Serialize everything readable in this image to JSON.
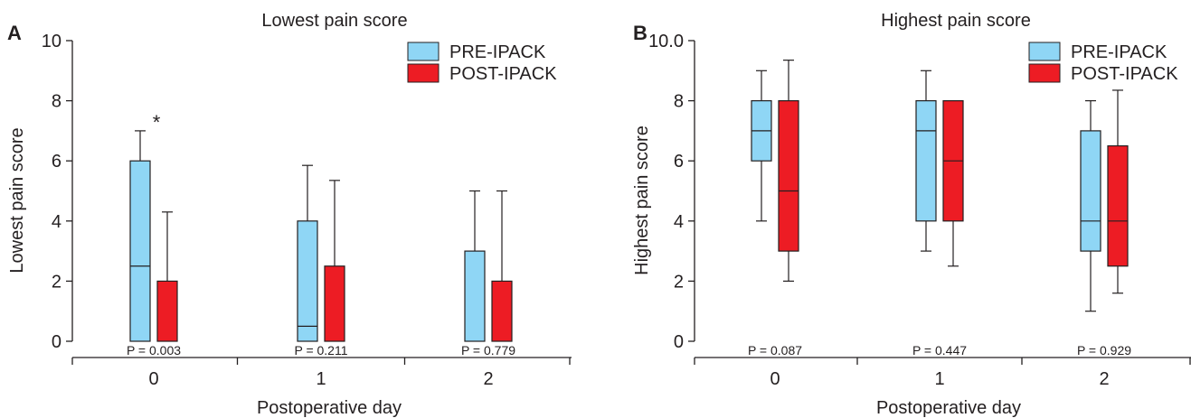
{
  "colors": {
    "pre": "#8fd6f5",
    "post": "#ed1c24",
    "ink": "#231f20"
  },
  "chart_data": [
    {
      "type": "box",
      "panel_label": "A",
      "title": "Lowest pain score",
      "xlabel": "Postoperative day",
      "ylabel": "Lowest pain score",
      "categories": [
        "0",
        "1",
        "2"
      ],
      "ylim": [
        0,
        10
      ],
      "yticks": [
        "0",
        "2",
        "4",
        "6",
        "8",
        "10"
      ],
      "legend_position": "top-right",
      "series": [
        {
          "name": "PRE-IPACK",
          "color": "#8fd6f5",
          "boxes": [
            {
              "min": 0,
              "q1": 0,
              "median": 2.5,
              "q3": 6,
              "max": 7
            },
            {
              "min": 0,
              "q1": 0,
              "median": 0.5,
              "q3": 4,
              "max": 5.85
            },
            {
              "min": 0,
              "q1": 0,
              "median": 0,
              "q3": 3,
              "max": 5
            }
          ]
        },
        {
          "name": "POST-IPACK",
          "color": "#ed1c24",
          "boxes": [
            {
              "min": 0,
              "q1": 0,
              "median": 0,
              "q3": 2,
              "max": 4.3
            },
            {
              "min": 0,
              "q1": 0,
              "median": 0,
              "q3": 2.5,
              "max": 5.35
            },
            {
              "min": 0,
              "q1": 0,
              "median": 0,
              "q3": 2,
              "max": 5
            }
          ]
        }
      ],
      "p_values": [
        "P = 0.003",
        "P = 0.211",
        "P = 0.779"
      ],
      "annotations": [
        {
          "text": "*",
          "category": "0"
        }
      ]
    },
    {
      "type": "box",
      "panel_label": "B",
      "title": "Highest pain score",
      "xlabel": "Postoperative day",
      "ylabel": "Highest pain score",
      "categories": [
        "0",
        "1",
        "2"
      ],
      "ylim": [
        0,
        10
      ],
      "yticks": [
        "0",
        "2",
        "4",
        "6",
        "8",
        "10.0"
      ],
      "legend_position": "top-right",
      "series": [
        {
          "name": "PRE-IPACK",
          "color": "#8fd6f5",
          "boxes": [
            {
              "min": 4,
              "q1": 6,
              "median": 7,
              "q3": 8,
              "max": 9
            },
            {
              "min": 3,
              "q1": 4,
              "median": 7,
              "q3": 8,
              "max": 9
            },
            {
              "min": 1,
              "q1": 3,
              "median": 4,
              "q3": 7,
              "max": 8
            }
          ]
        },
        {
          "name": "POST-IPACK",
          "color": "#ed1c24",
          "boxes": [
            {
              "min": 2,
              "q1": 3,
              "median": 5,
              "q3": 8,
              "max": 9.35
            },
            {
              "min": 2.5,
              "q1": 4,
              "median": 6,
              "q3": 8,
              "max": 8
            },
            {
              "min": 1.6,
              "q1": 2.5,
              "median": 4,
              "q3": 6.5,
              "max": 8.35
            }
          ]
        }
      ],
      "p_values": [
        "P = 0.087",
        "P = 0.447",
        "P = 0.929"
      ],
      "annotations": []
    }
  ]
}
